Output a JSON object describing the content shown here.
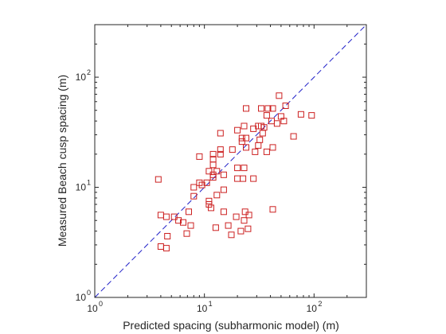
{
  "chart_data": {
    "type": "scatter",
    "xlabel": "Predicted spacing (subharmonic model) (m)",
    "ylabel": "Measured Beach cusp spacing (m)",
    "xscale": "log",
    "yscale": "log",
    "xlim": [
      1,
      300
    ],
    "ylim": [
      1,
      300
    ],
    "xticks": [
      {
        "value": 1,
        "base": "10",
        "exp": "0"
      },
      {
        "value": 10,
        "base": "10",
        "exp": "1"
      },
      {
        "value": 100,
        "base": "10",
        "exp": "2"
      }
    ],
    "yticks": [
      {
        "value": 1,
        "base": "10",
        "exp": "0"
      },
      {
        "value": 10,
        "base": "10",
        "exp": "1"
      },
      {
        "value": 100,
        "base": "10",
        "exp": "2"
      }
    ],
    "grid": false,
    "legend": "none",
    "reference_line": {
      "type": "y=x",
      "style": "dashed",
      "color": "#2020c8"
    },
    "marker": {
      "shape": "square",
      "filled": false,
      "color": "#cc2020"
    },
    "series": [
      {
        "points": [
          [
            48,
            68
          ],
          [
            33,
            52
          ],
          [
            24,
            52
          ],
          [
            38,
            52
          ],
          [
            42,
            52
          ],
          [
            55,
            55
          ],
          [
            76,
            46
          ],
          [
            95,
            45
          ],
          [
            37,
            45
          ],
          [
            50,
            44
          ],
          [
            53,
            40
          ],
          [
            41,
            40
          ],
          [
            46,
            38
          ],
          [
            23,
            36
          ],
          [
            31,
            36
          ],
          [
            33,
            36
          ],
          [
            35,
            35
          ],
          [
            28,
            34
          ],
          [
            20,
            33
          ],
          [
            34,
            31
          ],
          [
            14,
            31
          ],
          [
            65,
            29
          ],
          [
            24,
            28
          ],
          [
            22,
            28
          ],
          [
            32,
            27
          ],
          [
            22,
            26
          ],
          [
            18,
            22
          ],
          [
            14,
            22
          ],
          [
            24,
            23
          ],
          [
            31,
            24
          ],
          [
            42,
            23
          ],
          [
            29,
            21
          ],
          [
            37,
            21
          ],
          [
            14,
            20
          ],
          [
            12,
            20
          ],
          [
            9,
            19
          ],
          [
            12,
            18
          ],
          [
            12,
            16
          ],
          [
            20,
            15
          ],
          [
            23,
            15
          ],
          [
            11,
            14
          ],
          [
            13,
            14
          ],
          [
            12,
            13
          ],
          [
            12,
            12.3
          ],
          [
            15,
            13
          ],
          [
            10.5,
            11
          ],
          [
            20,
            12
          ],
          [
            22.5,
            12
          ],
          [
            28,
            12
          ],
          [
            3.8,
            11.8
          ],
          [
            9,
            11
          ],
          [
            9.5,
            10.5
          ],
          [
            8,
            10
          ],
          [
            15,
            9.5
          ],
          [
            13,
            8.5
          ],
          [
            8,
            8.3
          ],
          [
            11,
            7.5
          ],
          [
            11,
            7.0
          ],
          [
            11.5,
            6.5
          ],
          [
            7.2,
            6.0
          ],
          [
            15,
            6.0
          ],
          [
            23.5,
            6.0
          ],
          [
            42,
            6.3
          ],
          [
            25.5,
            5.6
          ],
          [
            19.5,
            5.4
          ],
          [
            4,
            5.6
          ],
          [
            4.5,
            5.4
          ],
          [
            5.3,
            5.4
          ],
          [
            5.8,
            5.0
          ],
          [
            6.4,
            4.8
          ],
          [
            23,
            5.0
          ],
          [
            16.5,
            4.5
          ],
          [
            7.5,
            4.5
          ],
          [
            12.7,
            4.3
          ],
          [
            25,
            4.2
          ],
          [
            21.5,
            4.0
          ],
          [
            4.6,
            3.6
          ],
          [
            17.6,
            3.7
          ],
          [
            6.9,
            3.8
          ],
          [
            4.0,
            2.9
          ],
          [
            4.5,
            2.8
          ]
        ]
      }
    ]
  }
}
